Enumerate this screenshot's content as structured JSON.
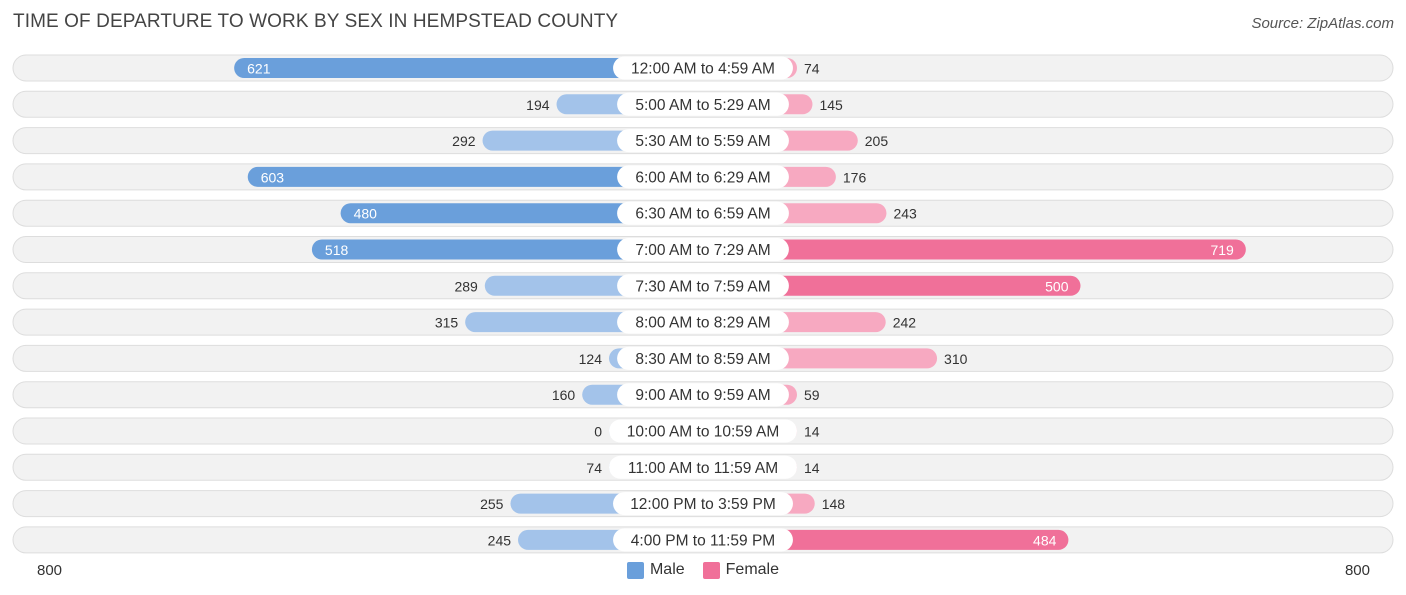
{
  "header": {
    "title": "TIME OF DEPARTURE TO WORK BY SEX IN HEMPSTEAD COUNTY",
    "source": "Source: ZipAtlas.com"
  },
  "axis": {
    "left_label": "800",
    "right_label": "800"
  },
  "legend": {
    "male_label": "Male",
    "female_label": "Female"
  },
  "colors": {
    "male_strong": "#6a9fdb",
    "male_light": "#a3c3ea",
    "female_strong": "#f07099",
    "female_light": "#f7a9c1",
    "row_bg": "#f2f2f2",
    "row_border": "#dddddd"
  },
  "chart_data": {
    "type": "bar",
    "orientation": "horizontal-diverging",
    "title": "TIME OF DEPARTURE TO WORK BY SEX IN HEMPSTEAD COUNTY",
    "xlim": [
      -800,
      800
    ],
    "categories": [
      "12:00 AM to 4:59 AM",
      "5:00 AM to 5:29 AM",
      "5:30 AM to 5:59 AM",
      "6:00 AM to 6:29 AM",
      "6:30 AM to 6:59 AM",
      "7:00 AM to 7:29 AM",
      "7:30 AM to 7:59 AM",
      "8:00 AM to 8:29 AM",
      "8:30 AM to 8:59 AM",
      "9:00 AM to 9:59 AM",
      "10:00 AM to 10:59 AM",
      "11:00 AM to 11:59 AM",
      "12:00 PM to 3:59 PM",
      "4:00 PM to 11:59 PM"
    ],
    "series": [
      {
        "name": "Male",
        "values": [
          621,
          194,
          292,
          603,
          480,
          518,
          289,
          315,
          124,
          160,
          0,
          74,
          255,
          245
        ]
      },
      {
        "name": "Female",
        "values": [
          74,
          145,
          205,
          176,
          243,
          719,
          500,
          242,
          310,
          59,
          14,
          14,
          148,
          484
        ]
      }
    ],
    "legend_position": "bottom-center"
  }
}
